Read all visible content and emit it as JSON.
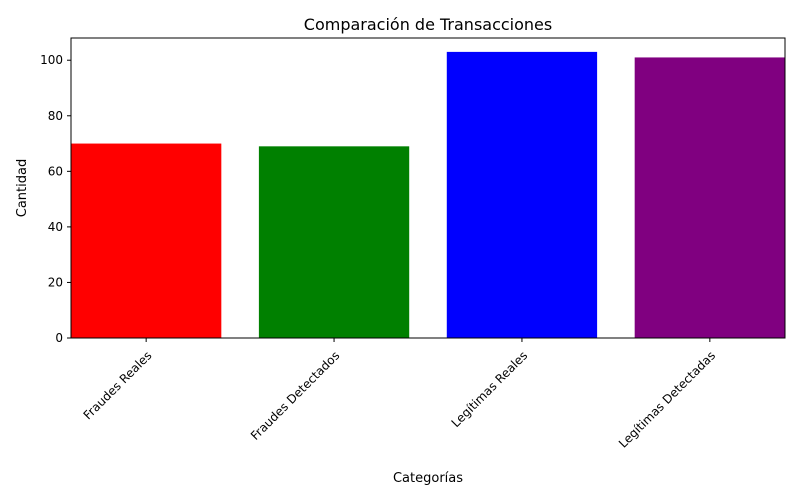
{
  "chart_data": {
    "type": "bar",
    "title": "Comparación de Transacciones",
    "xlabel": "Categorías",
    "ylabel": "Cantidad",
    "categories": [
      "Fraudes Reales",
      "Fraudes Detectados",
      "Legítimas Reales",
      "Legítimas Detectadas"
    ],
    "values": [
      70,
      69,
      103,
      101
    ],
    "colors": [
      "#ff0000",
      "#008000",
      "#0000ff",
      "#800080"
    ],
    "ylim": [
      0,
      108
    ],
    "yticks": [
      0,
      20,
      40,
      60,
      80,
      100
    ],
    "grid": false,
    "legend": false
  }
}
